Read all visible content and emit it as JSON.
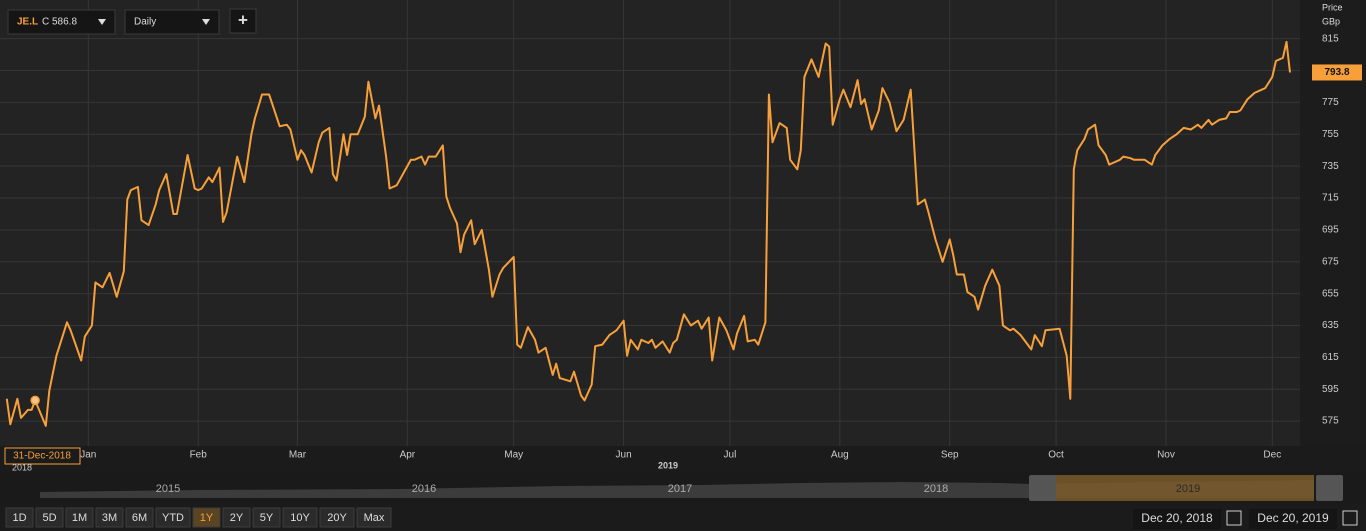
{
  "toolbar": {
    "symbol": "JE.L",
    "quote": "C 586.8",
    "interval": "Daily",
    "add": "+"
  },
  "chart_data": {
    "type": "line",
    "y_axis_title": "Price",
    "y_axis_unit": "GBp",
    "color": "#f7a03a",
    "grid": true,
    "x": [
      -8,
      -7,
      -5,
      -4,
      -2,
      -1,
      0,
      3,
      4,
      6,
      9,
      10,
      13,
      14,
      16,
      17,
      19,
      21,
      23,
      25,
      26,
      27,
      29,
      30,
      32,
      34,
      35,
      37,
      39,
      40,
      43,
      45,
      46,
      47,
      49,
      50,
      52,
      53,
      54,
      57,
      59,
      61,
      62,
      64,
      66,
      69,
      71,
      72,
      74,
      75,
      76,
      78,
      80,
      81,
      83,
      84,
      85,
      87,
      88,
      89,
      91,
      93,
      94,
      96,
      97,
      99,
      100,
      102,
      104,
      106,
      107,
      109,
      110,
      111,
      113,
      115,
      116,
      117,
      119,
      120,
      121,
      123,
      124,
      126,
      128,
      129,
      131,
      132,
      135,
      136,
      137,
      139,
      141,
      142,
      144,
      146,
      147,
      148,
      151,
      152,
      154,
      155,
      157,
      158,
      160,
      162,
      164,
      166,
      167,
      168,
      170,
      171,
      173,
      174,
      175,
      177,
      179,
      180,
      181,
      183,
      185,
      187,
      188,
      190,
      191,
      193,
      195,
      197,
      198,
      200,
      201,
      203,
      204,
      206,
      207,
      208,
      210,
      212,
      213,
      215,
      216,
      217,
      219,
      221,
      223,
      224,
      225,
      227,
      228,
      230,
      232,
      233,
      234,
      236,
      238,
      239,
      241,
      243,
      245,
      247,
      249,
      251,
      252,
      254,
      256,
      258,
      259,
      260,
      262,
      263,
      265,
      266,
      268,
      270,
      272,
      273,
      275,
      276,
      278,
      281,
      282,
      284,
      285,
      289,
      291,
      292,
      293,
      294,
      296,
      297,
      299,
      300,
      302,
      303,
      304,
      306,
      307,
      309,
      310,
      312,
      313,
      315,
      316,
      318,
      320,
      322,
      324,
      326,
      328,
      329,
      331,
      332,
      334,
      336,
      337,
      339,
      340,
      342,
      344,
      346,
      347,
      349,
      350,
      352,
      353,
      354
    ],
    "values": [
      589,
      573,
      589,
      577,
      582,
      582,
      588,
      572,
      594,
      616,
      637,
      632,
      613,
      628,
      635,
      662,
      659,
      668,
      653,
      669,
      714,
      720,
      722,
      701,
      698,
      711,
      720,
      730,
      705,
      705,
      742,
      721,
      720,
      721,
      728,
      725,
      734,
      700,
      706,
      741,
      725,
      755,
      765,
      780,
      780,
      760,
      761,
      758,
      739,
      745,
      742,
      731,
      750,
      756,
      759,
      730,
      726,
      755,
      742,
      755,
      755,
      766,
      788,
      765,
      773,
      741,
      721,
      723,
      731,
      739,
      739,
      741,
      736,
      741,
      741,
      748,
      716,
      709,
      699,
      681,
      692,
      701,
      686,
      695,
      670,
      653,
      667,
      671,
      678,
      623,
      621,
      634,
      626,
      618,
      621,
      604,
      611,
      602,
      600,
      606,
      591,
      588,
      598,
      622,
      623,
      629,
      632,
      638,
      616,
      626,
      620,
      626,
      624,
      626,
      621,
      625,
      618,
      624,
      626,
      642,
      635,
      638,
      633,
      640,
      613,
      640,
      632,
      620,
      630,
      641,
      625,
      626,
      623,
      637,
      780,
      750,
      762,
      759,
      739,
      733,
      745,
      791,
      802,
      791,
      812,
      810,
      761,
      777,
      783,
      772,
      789,
      774,
      777,
      758,
      770,
      784,
      775,
      757,
      764,
      783,
      711,
      714,
      706,
      689,
      675,
      689,
      679,
      667,
      667,
      656,
      653,
      645,
      660,
      670,
      660,
      635,
      632,
      633,
      629,
      620,
      629,
      622,
      632,
      633,
      616,
      589,
      733,
      745,
      752,
      758,
      761,
      748,
      742,
      736,
      737,
      739,
      741,
      740,
      739,
      739,
      739,
      736,
      742,
      748,
      752,
      755,
      759,
      758,
      761,
      759,
      764,
      761,
      764,
      765,
      769,
      769,
      770,
      777,
      781,
      783,
      784,
      791,
      801,
      803,
      813,
      793.8
    ],
    "xlim": [
      -8.5,
      355.4
    ],
    "ylim": [
      560,
      833
    ],
    "xticks": [
      {
        "value": 15,
        "label": "Jan"
      },
      {
        "value": 46,
        "label": "Feb"
      },
      {
        "value": 74,
        "label": "Mar"
      },
      {
        "value": 105,
        "label": "Apr"
      },
      {
        "value": 135,
        "label": "May"
      },
      {
        "value": 166,
        "label": "Jun"
      },
      {
        "value": 196,
        "label": "Jul"
      },
      {
        "value": 227,
        "label": "Aug"
      },
      {
        "value": 258,
        "label": "Sep"
      },
      {
        "value": 288,
        "label": "Oct"
      },
      {
        "value": 319,
        "label": "Nov"
      },
      {
        "value": 349,
        "label": "Dec"
      }
    ],
    "yticks": [
      575,
      595,
      615,
      635,
      655,
      675,
      695,
      715,
      735,
      755,
      775,
      795,
      815
    ],
    "x_year_label": "2019"
  },
  "cursor": {
    "date": "31-Dec-2018",
    "year": "2018"
  },
  "navigator": {
    "years": [
      "2015",
      "2016",
      "2017",
      "2018",
      "2019"
    ]
  },
  "ranges": [
    "1D",
    "5D",
    "1M",
    "3M",
    "6M",
    "YTD",
    "1Y",
    "2Y",
    "5Y",
    "10Y",
    "20Y",
    "Max"
  ],
  "dates": {
    "from": "Dec 20, 2018",
    "to": "Dec 20, 2019"
  }
}
